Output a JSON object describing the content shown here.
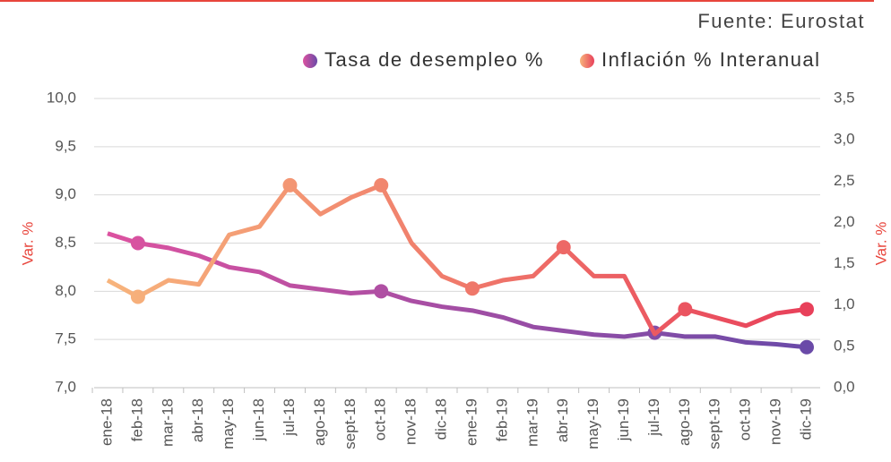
{
  "chart_data": {
    "type": "line",
    "source": "Fuente: Eurostat",
    "ylabel": "Var. %",
    "y2label": "Var. %",
    "categories": [
      "ene-18",
      "feb-18",
      "mar-18",
      "abr-18",
      "may-18",
      "jun-18",
      "jul-18",
      "ago-18",
      "sept-18",
      "oct-18",
      "nov-18",
      "dic-18",
      "ene-19",
      "feb-19",
      "mar-19",
      "abr-19",
      "may-19",
      "jun-19",
      "jul-19",
      "ago-19",
      "sept-19",
      "oct-19",
      "nov-19",
      "dic-19"
    ],
    "series": [
      {
        "name": "Tasa de desempleo %",
        "colors": [
          "#dc52a0",
          "#6a4aa8"
        ],
        "axis": "y",
        "values": [
          8.6,
          8.5,
          8.45,
          8.37,
          8.25,
          8.2,
          8.06,
          8.02,
          7.98,
          8.0,
          7.9,
          7.84,
          7.8,
          7.73,
          7.63,
          7.59,
          7.55,
          7.53,
          7.57,
          7.53,
          7.53,
          7.47,
          7.45,
          7.42
        ],
        "markers": [
          1,
          9,
          18,
          23
        ]
      },
      {
        "name": "Inflación % Interanual",
        "colors": [
          "#f7b47c",
          "#e8405a"
        ],
        "axis": "y2",
        "values": [
          1.3,
          1.1,
          1.3,
          1.25,
          1.85,
          1.95,
          2.45,
          2.1,
          2.3,
          2.45,
          1.75,
          1.35,
          1.2,
          1.3,
          1.35,
          1.7,
          1.35,
          1.35,
          0.65,
          0.95,
          0.85,
          0.75,
          0.9,
          0.95
        ],
        "markers": [
          1,
          6,
          9,
          12,
          15,
          19,
          23
        ]
      }
    ],
    "ylim": [
      7.0,
      10.0
    ],
    "yticks": [
      {
        "value": 7.0,
        "label": "7,0"
      },
      {
        "value": 7.5,
        "label": "7,5"
      },
      {
        "value": 8.0,
        "label": "8,0"
      },
      {
        "value": 8.5,
        "label": "8,5"
      },
      {
        "value": 9.0,
        "label": "9,0"
      },
      {
        "value": 9.5,
        "label": "9,5"
      },
      {
        "value": 10.0,
        "label": "10,0"
      }
    ],
    "y2lim": [
      0.0,
      3.5
    ],
    "y2ticks": [
      {
        "value": 0.0,
        "label": "0,0"
      },
      {
        "value": 0.5,
        "label": "0,5"
      },
      {
        "value": 1.0,
        "label": "1,0"
      },
      {
        "value": 1.5,
        "label": "1,5"
      },
      {
        "value": 2.0,
        "label": "2,0"
      },
      {
        "value": 2.5,
        "label": "2,5"
      },
      {
        "value": 3.0,
        "label": "3,0"
      },
      {
        "value": 3.5,
        "label": "3,5"
      }
    ],
    "grid": true
  }
}
